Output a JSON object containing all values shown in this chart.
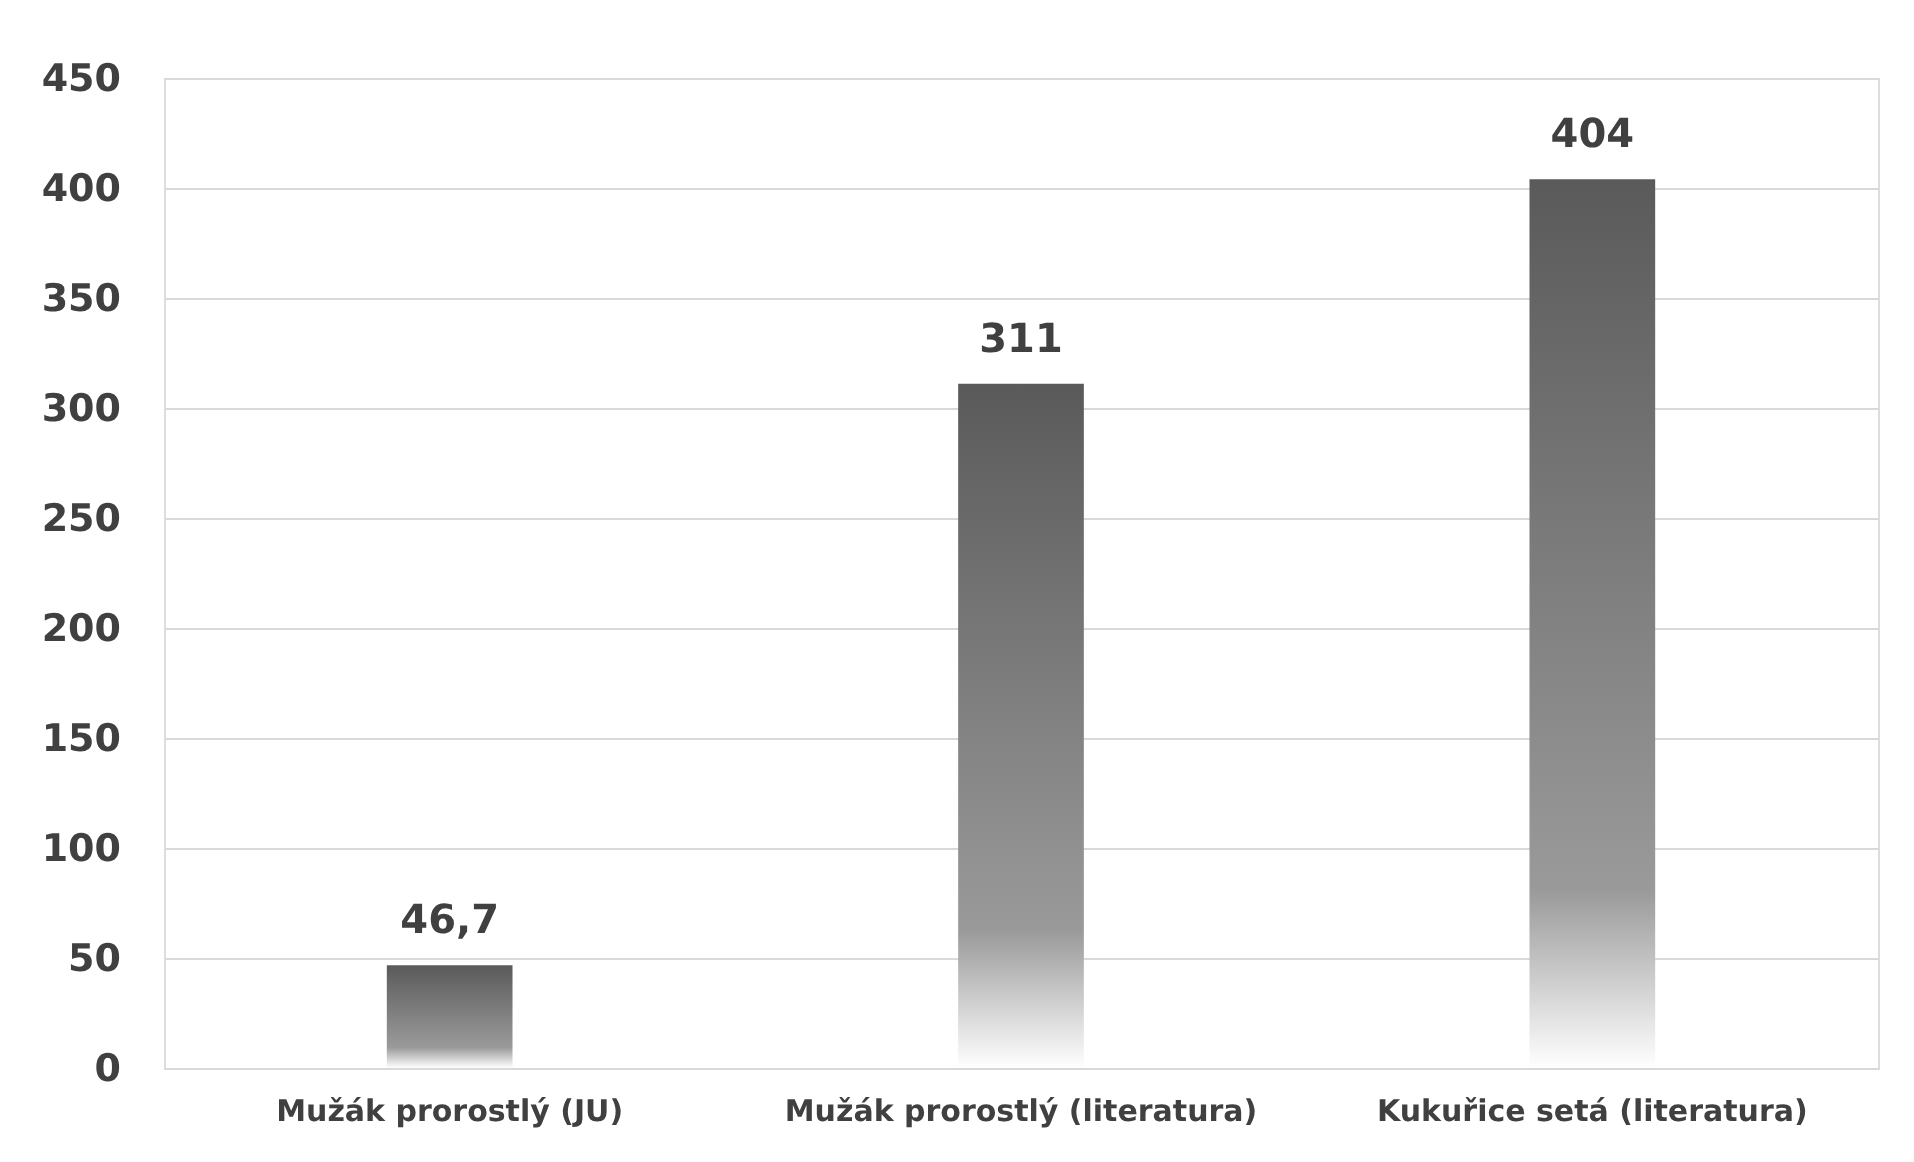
{
  "chart_data": {
    "type": "bar",
    "categories": [
      "Mužák prorostlý (JU)",
      "Mužák prorostlý (literatura)",
      "Kukuřice setá (literatura)"
    ],
    "values": [
      46.7,
      311,
      404
    ],
    "value_labels": [
      "46,7",
      "311",
      "404"
    ],
    "color": "#5a5a5a",
    "ylim": [
      0,
      450
    ],
    "yticks": [
      0,
      50,
      100,
      150,
      200,
      250,
      300,
      350,
      400,
      450
    ],
    "grid": "y"
  }
}
